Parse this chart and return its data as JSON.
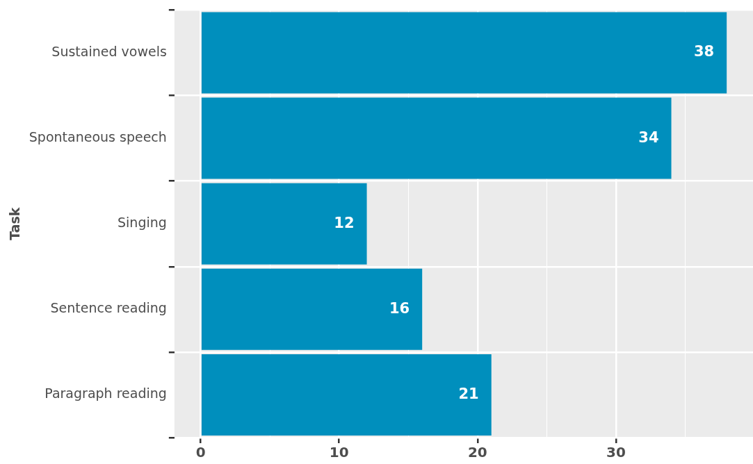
{
  "chart_data": {
    "type": "bar",
    "orientation": "horizontal",
    "ylabel": "Task",
    "categories": [
      "Sustained vowels",
      "Spontaneous speech",
      "Singing",
      "Sentence reading",
      "Paragraph reading"
    ],
    "values": [
      38,
      34,
      12,
      16,
      21
    ],
    "color": "#008fbd",
    "xlim": [
      -1.9,
      39.9
    ],
    "xticks": [
      0,
      {
        "value": 5,
        "label": null
      },
      10,
      {
        "value": 15,
        "label": null
      },
      20,
      {
        "value": 25,
        "label": null
      },
      30,
      {
        "value": 35,
        "label": null
      }
    ],
    "grid": true,
    "data_labels": true,
    "legend": false
  }
}
